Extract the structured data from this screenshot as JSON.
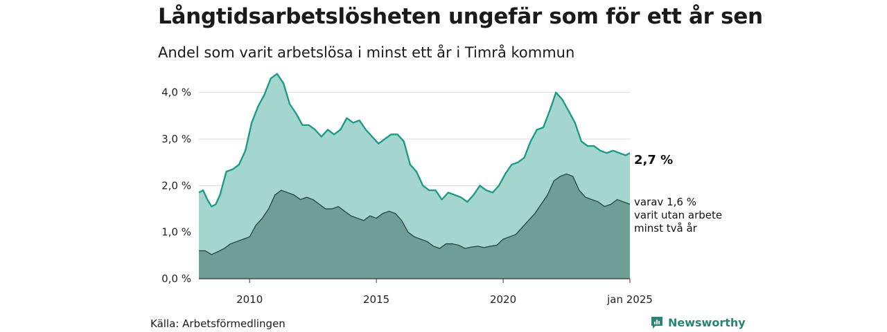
{
  "header": {
    "title": "Långtidsarbetslösheten ungefär som för ett år sen",
    "subtitle": "Andel som varit arbetslösa i minst ett år i Timrå kommun"
  },
  "footer": {
    "source": "Källa: Arbetsförmedlingen",
    "brand": "Newsworthy"
  },
  "chart_data": {
    "type": "area",
    "x_range": [
      "2008-01",
      "2025-01"
    ],
    "ylim": [
      0,
      4.5
    ],
    "grid": true,
    "y_ticks": [
      {
        "value": 0,
        "label": "0,0 %"
      },
      {
        "value": 1,
        "label": "1,0 %"
      },
      {
        "value": 2,
        "label": "2,0 %"
      },
      {
        "value": 3,
        "label": "3,0 %"
      },
      {
        "value": 4,
        "label": "4,0 %"
      }
    ],
    "x_ticks": [
      {
        "value": "2010-01",
        "label": "2010"
      },
      {
        "value": "2015-01",
        "label": "2015"
      },
      {
        "value": "2020-01",
        "label": "2020"
      },
      {
        "value": "2025-01",
        "label": "jan 2025"
      }
    ],
    "end_labels": {
      "main": "2,7 %",
      "sub": [
        "varav 1,6 %",
        "varit utan arbete",
        "minst två år"
      ]
    },
    "colors": {
      "main_fill": "#a4d6cf",
      "main_line": "#1e9b88",
      "sub_fill": "#6f9e96",
      "sub_line": "#2d4a44",
      "grid": "#d9d9d9"
    },
    "series": [
      {
        "values": [
          [
            "2008-01",
            1.85
          ],
          [
            "2008-03",
            1.9
          ],
          [
            "2008-05",
            1.7
          ],
          [
            "2008-07",
            1.55
          ],
          [
            "2008-09",
            1.6
          ],
          [
            "2008-11",
            1.8
          ],
          [
            "2009-02",
            2.3
          ],
          [
            "2009-05",
            2.35
          ],
          [
            "2009-08",
            2.45
          ],
          [
            "2009-11",
            2.75
          ],
          [
            "2010-02",
            3.35
          ],
          [
            "2010-05",
            3.7
          ],
          [
            "2010-08",
            3.95
          ],
          [
            "2010-11",
            4.3
          ],
          [
            "2011-02",
            4.4
          ],
          [
            "2011-05",
            4.2
          ],
          [
            "2011-08",
            3.75
          ],
          [
            "2011-11",
            3.55
          ],
          [
            "2012-02",
            3.3
          ],
          [
            "2012-05",
            3.3
          ],
          [
            "2012-08",
            3.2
          ],
          [
            "2012-11",
            3.05
          ],
          [
            "2013-02",
            3.2
          ],
          [
            "2013-05",
            3.1
          ],
          [
            "2013-08",
            3.2
          ],
          [
            "2013-11",
            3.45
          ],
          [
            "2014-02",
            3.35
          ],
          [
            "2014-05",
            3.4
          ],
          [
            "2014-08",
            3.2
          ],
          [
            "2014-11",
            3.05
          ],
          [
            "2015-02",
            2.9
          ],
          [
            "2015-05",
            3.0
          ],
          [
            "2015-08",
            3.1
          ],
          [
            "2015-11",
            3.1
          ],
          [
            "2016-02",
            2.95
          ],
          [
            "2016-05",
            2.45
          ],
          [
            "2016-08",
            2.3
          ],
          [
            "2016-11",
            2.0
          ],
          [
            "2017-02",
            1.9
          ],
          [
            "2017-05",
            1.9
          ],
          [
            "2017-08",
            1.7
          ],
          [
            "2017-11",
            1.85
          ],
          [
            "2018-02",
            1.8
          ],
          [
            "2018-05",
            1.75
          ],
          [
            "2018-08",
            1.65
          ],
          [
            "2018-11",
            1.8
          ],
          [
            "2019-02",
            2.0
          ],
          [
            "2019-05",
            1.9
          ],
          [
            "2019-08",
            1.85
          ],
          [
            "2019-11",
            2.0
          ],
          [
            "2020-02",
            2.25
          ],
          [
            "2020-05",
            2.45
          ],
          [
            "2020-08",
            2.5
          ],
          [
            "2020-11",
            2.6
          ],
          [
            "2021-02",
            2.95
          ],
          [
            "2021-05",
            3.2
          ],
          [
            "2021-08",
            3.25
          ],
          [
            "2021-11",
            3.6
          ],
          [
            "2022-02",
            4.0
          ],
          [
            "2022-05",
            3.85
          ],
          [
            "2022-08",
            3.6
          ],
          [
            "2022-11",
            3.35
          ],
          [
            "2023-02",
            2.95
          ],
          [
            "2023-05",
            2.85
          ],
          [
            "2023-08",
            2.85
          ],
          [
            "2023-11",
            2.75
          ],
          [
            "2024-02",
            2.7
          ],
          [
            "2024-05",
            2.75
          ],
          [
            "2024-08",
            2.7
          ],
          [
            "2024-11",
            2.65
          ],
          [
            "2025-01",
            2.7
          ]
        ]
      },
      {
        "values": [
          [
            "2008-01",
            0.6
          ],
          [
            "2008-04",
            0.6
          ],
          [
            "2008-07",
            0.52
          ],
          [
            "2008-10",
            0.58
          ],
          [
            "2009-01",
            0.65
          ],
          [
            "2009-04",
            0.75
          ],
          [
            "2009-07",
            0.8
          ],
          [
            "2009-10",
            0.85
          ],
          [
            "2010-01",
            0.9
          ],
          [
            "2010-04",
            1.15
          ],
          [
            "2010-07",
            1.3
          ],
          [
            "2010-10",
            1.5
          ],
          [
            "2011-01",
            1.8
          ],
          [
            "2011-04",
            1.9
          ],
          [
            "2011-07",
            1.85
          ],
          [
            "2011-10",
            1.8
          ],
          [
            "2012-01",
            1.7
          ],
          [
            "2012-04",
            1.75
          ],
          [
            "2012-07",
            1.7
          ],
          [
            "2012-10",
            1.6
          ],
          [
            "2013-01",
            1.5
          ],
          [
            "2013-04",
            1.5
          ],
          [
            "2013-07",
            1.55
          ],
          [
            "2013-10",
            1.45
          ],
          [
            "2014-01",
            1.35
          ],
          [
            "2014-04",
            1.3
          ],
          [
            "2014-07",
            1.25
          ],
          [
            "2014-10",
            1.35
          ],
          [
            "2015-01",
            1.3
          ],
          [
            "2015-04",
            1.4
          ],
          [
            "2015-07",
            1.45
          ],
          [
            "2015-10",
            1.4
          ],
          [
            "2016-01",
            1.25
          ],
          [
            "2016-04",
            1.0
          ],
          [
            "2016-07",
            0.9
          ],
          [
            "2016-10",
            0.85
          ],
          [
            "2017-01",
            0.8
          ],
          [
            "2017-04",
            0.7
          ],
          [
            "2017-07",
            0.65
          ],
          [
            "2017-10",
            0.75
          ],
          [
            "2018-01",
            0.75
          ],
          [
            "2018-04",
            0.72
          ],
          [
            "2018-07",
            0.65
          ],
          [
            "2018-10",
            0.68
          ],
          [
            "2019-01",
            0.7
          ],
          [
            "2019-04",
            0.67
          ],
          [
            "2019-07",
            0.7
          ],
          [
            "2019-10",
            0.72
          ],
          [
            "2020-01",
            0.85
          ],
          [
            "2020-04",
            0.9
          ],
          [
            "2020-07",
            0.95
          ],
          [
            "2020-10",
            1.1
          ],
          [
            "2021-01",
            1.25
          ],
          [
            "2021-04",
            1.4
          ],
          [
            "2021-07",
            1.6
          ],
          [
            "2021-10",
            1.8
          ],
          [
            "2022-01",
            2.1
          ],
          [
            "2022-04",
            2.2
          ],
          [
            "2022-07",
            2.25
          ],
          [
            "2022-10",
            2.2
          ],
          [
            "2023-01",
            1.9
          ],
          [
            "2023-04",
            1.75
          ],
          [
            "2023-07",
            1.7
          ],
          [
            "2023-10",
            1.65
          ],
          [
            "2024-01",
            1.55
          ],
          [
            "2024-04",
            1.6
          ],
          [
            "2024-07",
            1.7
          ],
          [
            "2024-10",
            1.65
          ],
          [
            "2025-01",
            1.6
          ]
        ]
      }
    ]
  }
}
